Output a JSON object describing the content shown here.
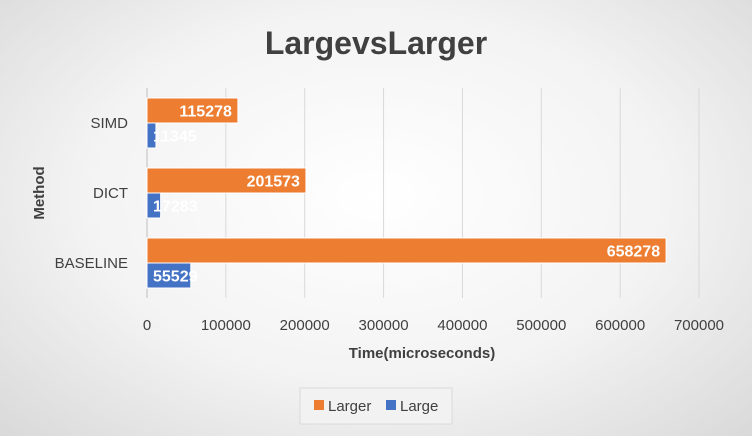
{
  "chart_data": {
    "type": "bar",
    "orientation": "horizontal",
    "title": "LargevsLarger",
    "xlabel": "Time(microseconds)",
    "ylabel": "Method",
    "categories": [
      "SIMD",
      "DICT",
      "BASELINE"
    ],
    "series": [
      {
        "name": "Larger",
        "color": "#ED7D31",
        "values": [
          115278,
          201573,
          658278
        ]
      },
      {
        "name": "Large",
        "color": "#4472C4",
        "values": [
          11345,
          17283,
          55529
        ]
      }
    ],
    "xlim": [
      0,
      700000
    ],
    "xticks": [
      0,
      100000,
      200000,
      300000,
      400000,
      500000,
      600000,
      700000
    ],
    "grid": true,
    "legend_position": "bottom",
    "data_labels": true
  }
}
